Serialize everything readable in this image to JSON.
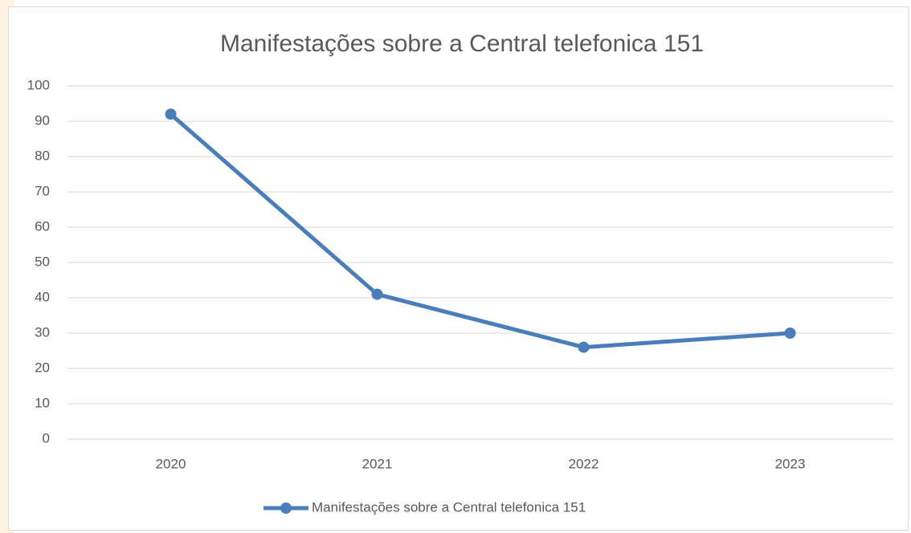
{
  "chart_data": {
    "type": "line",
    "title": "Manifestações sobre a Central telefonica 151",
    "categories": [
      "2020",
      "2021",
      "2022",
      "2023"
    ],
    "series": [
      {
        "name": "Manifestações sobre a Central telefonica 151",
        "color": "#4a7ebb",
        "values": [
          92,
          41,
          26,
          30
        ]
      }
    ],
    "ylim": [
      0,
      100
    ],
    "yticks": [
      0,
      10,
      20,
      30,
      40,
      50,
      60,
      70,
      80,
      90,
      100
    ],
    "grid": true,
    "legend": "bottom"
  }
}
